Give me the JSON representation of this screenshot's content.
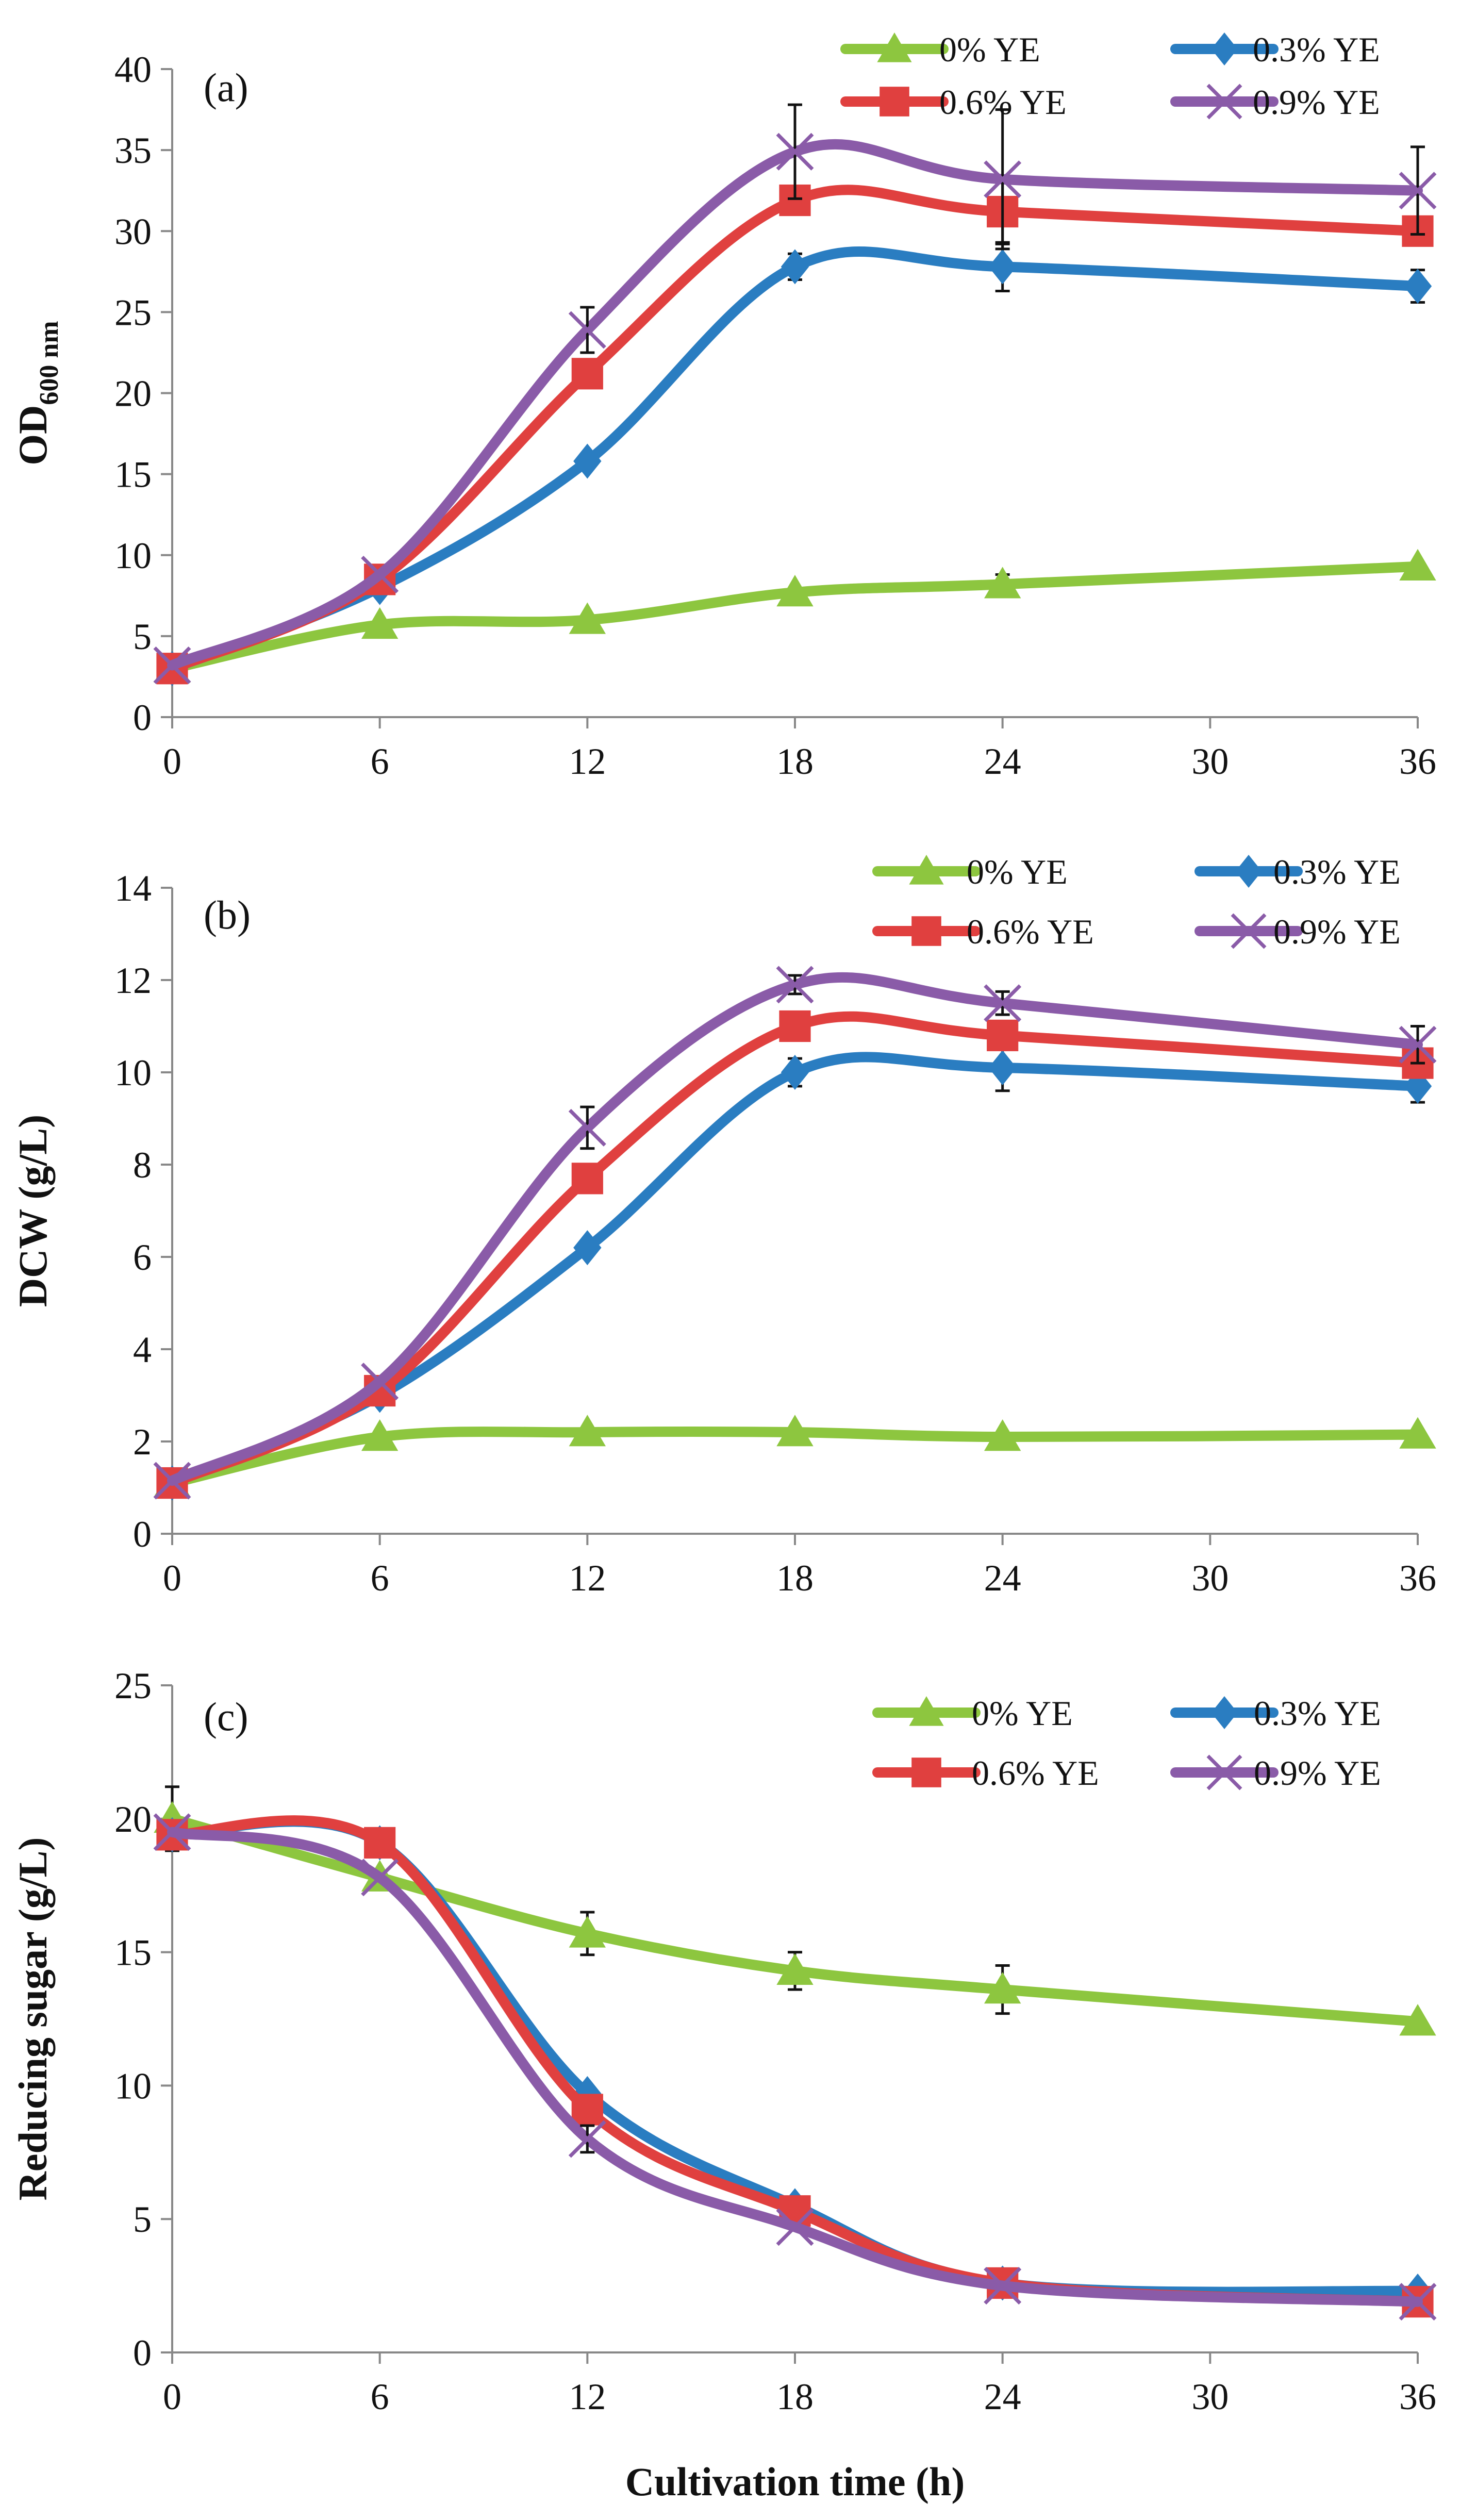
{
  "chart_data": [
    {
      "type": "line",
      "panel_label": "(a)",
      "ylabel": "OD",
      "ylabel_sub": "600 nm",
      "xlabel": "",
      "x": [
        0,
        6,
        12,
        18,
        24,
        36
      ],
      "xticks": [
        0,
        6,
        12,
        18,
        24,
        30,
        36
      ],
      "xlim": [
        0,
        36
      ],
      "ylim": [
        0,
        40
      ],
      "yticks": [
        0,
        5,
        10,
        15,
        20,
        25,
        30,
        35,
        40
      ],
      "grid": false,
      "legend_position": "top-right",
      "series": [
        {
          "name": "0% YE",
          "color": "#8DC63F",
          "marker": "triangle",
          "values": [
            3.0,
            5.7,
            6.0,
            7.7,
            8.2,
            9.3
          ],
          "errors": [
            0,
            0,
            0,
            0,
            0.6,
            0
          ]
        },
        {
          "name": "0.3% YE",
          "color": "#2A7DC1",
          "marker": "diamond",
          "values": [
            3.0,
            8.0,
            15.8,
            27.8,
            27.8,
            26.6
          ],
          "errors": [
            0,
            0,
            0,
            0.8,
            1.5,
            1.0
          ]
        },
        {
          "name": "0.6% YE",
          "color": "#E0403F",
          "marker": "square",
          "values": [
            3.0,
            8.5,
            21.2,
            31.9,
            31.2,
            30.0
          ],
          "errors": [
            0,
            0,
            0,
            0,
            2.0,
            0
          ]
        },
        {
          "name": "0.9% YE",
          "color": "#8A5BA8",
          "marker": "cross",
          "values": [
            3.2,
            8.8,
            23.9,
            34.9,
            33.2,
            32.5
          ],
          "errors": [
            0,
            0,
            1.4,
            2.9,
            4.3,
            2.7
          ]
        }
      ]
    },
    {
      "type": "line",
      "panel_label": "(b)",
      "ylabel": "DCW (g/L)",
      "xlabel": "",
      "x": [
        0,
        6,
        12,
        18,
        24,
        36
      ],
      "xticks": [
        0,
        6,
        12,
        18,
        24,
        30,
        36
      ],
      "xlim": [
        0,
        36
      ],
      "ylim": [
        0,
        14
      ],
      "yticks": [
        0,
        2,
        4,
        6,
        8,
        10,
        12,
        14
      ],
      "grid": false,
      "legend_position": "top-right",
      "series": [
        {
          "name": "0% YE",
          "color": "#8DC63F",
          "marker": "triangle",
          "values": [
            1.1,
            2.1,
            2.2,
            2.2,
            2.1,
            2.15
          ],
          "errors": [
            0,
            0,
            0,
            0,
            0,
            0
          ]
        },
        {
          "name": "0.3% YE",
          "color": "#2A7DC1",
          "marker": "diamond",
          "values": [
            1.1,
            3.0,
            6.2,
            10.0,
            10.1,
            9.7
          ],
          "errors": [
            0,
            0,
            0,
            0.3,
            0.5,
            0.35
          ]
        },
        {
          "name": "0.6% YE",
          "color": "#E0403F",
          "marker": "square",
          "values": [
            1.1,
            3.1,
            7.7,
            11.0,
            10.8,
            10.2
          ],
          "errors": [
            0,
            0,
            0,
            0,
            0,
            0
          ]
        },
        {
          "name": "0.9% YE",
          "color": "#8A5BA8",
          "marker": "cross",
          "values": [
            1.15,
            3.3,
            8.8,
            11.9,
            11.5,
            10.6
          ],
          "errors": [
            0,
            0,
            0.45,
            0.2,
            0.25,
            0.4
          ]
        }
      ]
    },
    {
      "type": "line",
      "panel_label": "(c)",
      "ylabel": "Reducing sugar  (g/L)",
      "xlabel": "Cultivation time (h)",
      "x": [
        0,
        6,
        12,
        18,
        24,
        36
      ],
      "xticks": [
        0,
        6,
        12,
        18,
        24,
        30,
        36
      ],
      "xlim": [
        0,
        36
      ],
      "ylim": [
        0,
        25
      ],
      "yticks": [
        0,
        5,
        10,
        15,
        20,
        25
      ],
      "grid": false,
      "legend_position": "top-right",
      "series": [
        {
          "name": "0% YE",
          "color": "#8DC63F",
          "marker": "triangle",
          "values": [
            20.0,
            17.8,
            15.7,
            14.3,
            13.6,
            12.4
          ],
          "errors": [
            1.2,
            0,
            0.8,
            0.7,
            0.9,
            0
          ]
        },
        {
          "name": "0.3% YE",
          "color": "#2A7DC1",
          "marker": "diamond",
          "values": [
            19.4,
            19.1,
            9.7,
            5.5,
            2.6,
            2.3
          ],
          "errors": [
            0,
            0,
            0,
            0,
            0,
            0
          ]
        },
        {
          "name": "0.6% YE",
          "color": "#E0403F",
          "marker": "square",
          "values": [
            19.4,
            19.1,
            9.1,
            5.3,
            2.6,
            1.9
          ],
          "errors": [
            0,
            0,
            0,
            0,
            0.4,
            0
          ]
        },
        {
          "name": "0.9% YE",
          "color": "#8A5BA8",
          "marker": "cross",
          "values": [
            19.5,
            17.8,
            8.0,
            4.7,
            2.5,
            1.9
          ],
          "errors": [
            0,
            0,
            0.5,
            0,
            0,
            0
          ]
        }
      ]
    }
  ]
}
